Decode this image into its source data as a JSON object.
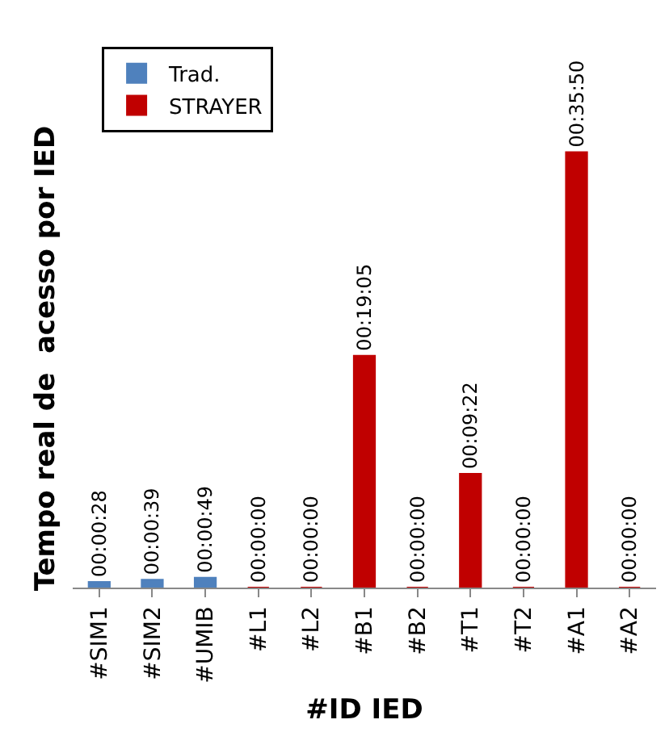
{
  "chart_data": {
    "type": "bar",
    "xlabel": "#ID IED",
    "ylabel": "Tempo real de  acesso por IED",
    "categories": [
      "#SIM1",
      "#SIM2",
      "#UMIB",
      "#L1",
      "#L2",
      "#B1",
      "#B2",
      "#T1",
      "#T2",
      "#A1",
      "#A2"
    ],
    "series": [
      {
        "name": "Trad.",
        "color": "#4f81bd",
        "values": [
          28,
          39,
          49,
          null,
          null,
          null,
          null,
          null,
          null,
          null,
          null
        ],
        "value_labels": [
          "00:00:28",
          "00:00:39",
          "00:00:49",
          null,
          null,
          null,
          null,
          null,
          null,
          null,
          null
        ]
      },
      {
        "name": "STRAYER",
        "color": "#c00000",
        "values": [
          null,
          null,
          null,
          0,
          0,
          1145,
          0,
          562,
          0,
          2150,
          0
        ],
        "value_labels": [
          null,
          null,
          null,
          "00:00:00",
          "00:00:00",
          "00:19:05",
          "00:00:00",
          "00:09:22",
          "00:00:00",
          "00:35:50",
          "00:00:00"
        ]
      }
    ],
    "legend": "top left",
    "tick_labels": "x"
  }
}
